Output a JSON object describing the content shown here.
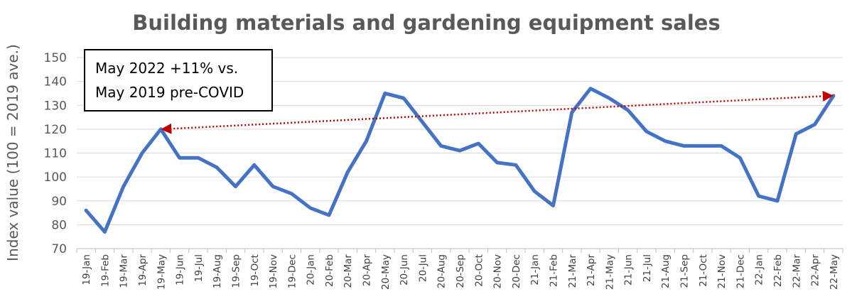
{
  "chart_data": {
    "type": "line",
    "title": "Building materials and gardening equipment sales",
    "ylabel": "Index value (100 = 2019 ave.)",
    "xlabel": "",
    "ylim": [
      70,
      150
    ],
    "yticks": [
      70,
      80,
      90,
      100,
      110,
      120,
      130,
      140,
      150
    ],
    "grid": "horizontal",
    "categories": [
      "19-Jan",
      "19-Feb",
      "19-Mar",
      "19-Apr",
      "19-May",
      "19-Jun",
      "19-Jul",
      "19-Aug",
      "19-Sep",
      "19-Oct",
      "19-Nov",
      "19-Dec",
      "20-Jan",
      "20-Feb",
      "20-Mar",
      "20-Apr",
      "20-May",
      "20-Jun",
      "20-Jul",
      "20-Aug",
      "20-Sep",
      "20-Oct",
      "20-Nov",
      "20-Dec",
      "21-Jan",
      "21-Feb",
      "21-Mar",
      "21-Apr",
      "21-May",
      "21-Jun",
      "21-Jul",
      "21-Aug",
      "21-Sep",
      "21-Oct",
      "21-Nov",
      "21-Dec",
      "22-Jan",
      "22-Feb",
      "22-Mar",
      "22-Apr",
      "22-May"
    ],
    "series": [
      {
        "color": "#4472C4",
        "values": [
          86,
          77,
          96,
          110,
          120,
          108,
          108,
          104,
          96,
          105,
          96,
          93,
          87,
          84,
          102,
          115,
          135,
          133,
          123,
          113,
          111,
          114,
          106,
          105,
          94,
          88,
          127,
          137,
          133,
          128,
          119,
          115,
          113,
          113,
          113,
          108,
          92,
          90,
          118,
          122,
          134
        ]
      }
    ],
    "annotation": {
      "lines": [
        "May 2022 +11% vs.",
        "May 2019 pre-COVID"
      ],
      "arrow": {
        "from_category": "19-May",
        "from_value": 120,
        "to_category": "22-May",
        "to_value": 134,
        "color": "#C00000",
        "style": "dotted",
        "heads": "both"
      }
    }
  }
}
